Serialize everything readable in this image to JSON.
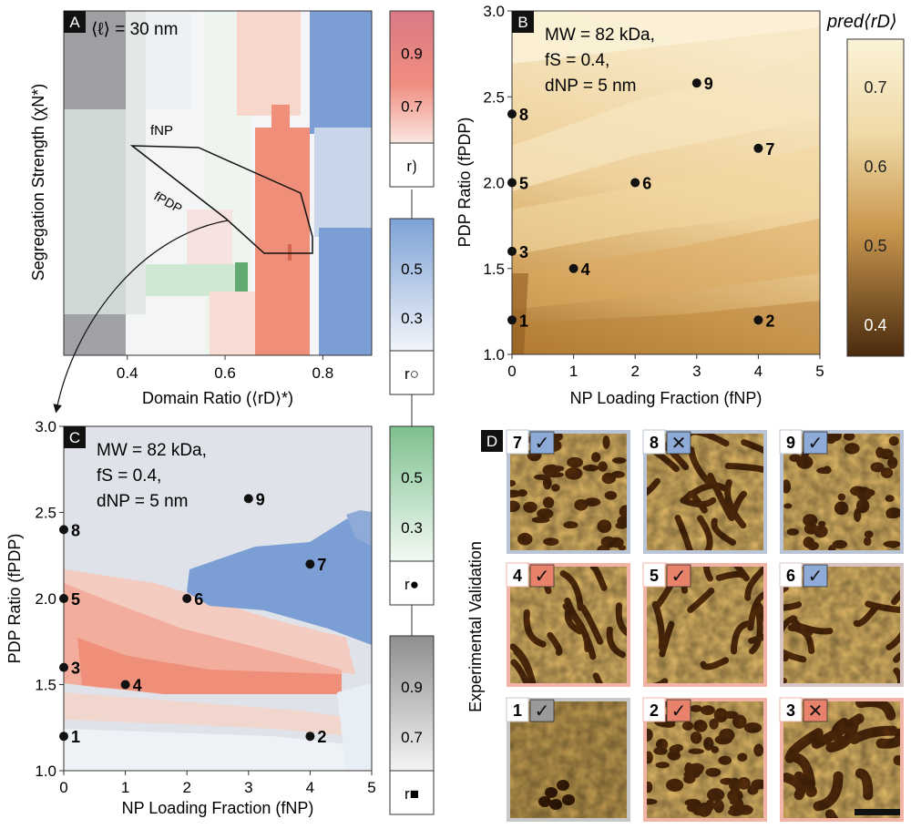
{
  "colors": {
    "red": "#e8826a",
    "red_light": "#f6c8bb",
    "blue": "#7b9fd4",
    "blue_light": "#c9d6ea",
    "green": "#8fca9c",
    "gray": "#9a9a9c",
    "bg_gray": "#dfe3e9",
    "pred_low": "#4a2a0e",
    "pred_high": "#fbf3d8"
  },
  "panel_a": {
    "letter": "A",
    "annotation": "⟨ℓ⟩ = 30 nm",
    "xlabel": "Domain Ratio (⟨rD⟩*)",
    "ylabel": "Segregation Strength (χN*)",
    "xticks": [
      "0.4",
      "0.6",
      "0.8"
    ],
    "xtick_values": [
      0.4,
      0.6,
      0.8
    ],
    "xlim": [
      0.27,
      0.9
    ],
    "label_fnp": "fNP",
    "label_fpdp": "fPDP"
  },
  "legends": [
    {
      "id": "red",
      "ticks": [
        "0.9",
        "0.7"
      ],
      "caption": "r⟯",
      "tick_pos": [
        0.32,
        0.72
      ]
    },
    {
      "id": "blue",
      "ticks": [
        "0.5",
        "0.3"
      ],
      "caption": "r○",
      "tick_pos": [
        0.38,
        0.75
      ]
    },
    {
      "id": "green",
      "ticks": [
        "0.5",
        "0.3"
      ],
      "caption": "r●",
      "tick_pos": [
        0.38,
        0.75
      ]
    },
    {
      "id": "gray",
      "ticks": [
        "0.9",
        "0.7"
      ],
      "caption": "r■",
      "tick_pos": [
        0.38,
        0.75
      ]
    }
  ],
  "chart_data": [
    {
      "panel": "B",
      "type": "heatmap",
      "annotation_lines": [
        "MW = 82 kDa,",
        "fS = 0.4,",
        "dNP = 5 nm"
      ],
      "xlabel": "NP Loading Fraction (fNP)",
      "ylabel": "PDP Ratio (fPDP)",
      "xlim": [
        0,
        5
      ],
      "ylim": [
        1.0,
        3.0
      ],
      "xticks": [
        "0",
        "1",
        "2",
        "3",
        "4",
        "5"
      ],
      "yticks": [
        "1.0",
        "1.5",
        "2.0",
        "2.5",
        "3.0"
      ],
      "colorbar": {
        "title": "pred⟨rD⟩",
        "ticks": [
          "0.7",
          "0.6",
          "0.5",
          "0.4"
        ],
        "tick_values": [
          0.7,
          0.6,
          0.5,
          0.4
        ],
        "range": [
          0.36,
          0.76
        ]
      },
      "points": [
        {
          "label": "1",
          "x": 0,
          "y": 1.2
        },
        {
          "label": "2",
          "x": 4,
          "y": 1.2
        },
        {
          "label": "3",
          "x": 0,
          "y": 1.6
        },
        {
          "label": "4",
          "x": 1,
          "y": 1.5
        },
        {
          "label": "5",
          "x": 0,
          "y": 2.0
        },
        {
          "label": "6",
          "x": 2,
          "y": 2.0
        },
        {
          "label": "7",
          "x": 4,
          "y": 2.2
        },
        {
          "label": "8",
          "x": 0,
          "y": 2.4
        },
        {
          "label": "9",
          "x": 3,
          "y": 2.58
        }
      ]
    },
    {
      "panel": "C",
      "type": "heatmap",
      "annotation_lines": [
        "MW = 82 kDa,",
        "fS = 0.4,",
        "dNP = 5 nm"
      ],
      "xlabel": "NP Loading Fraction (fNP)",
      "ylabel": "PDP Ratio (fPDP)",
      "xlim": [
        0,
        5
      ],
      "ylim": [
        1.0,
        3.0
      ],
      "xticks": [
        "0",
        "1",
        "2",
        "3",
        "4",
        "5"
      ],
      "yticks": [
        "1.0",
        "1.5",
        "2.0",
        "2.5",
        "3.0"
      ],
      "points": [
        {
          "label": "1",
          "x": 0,
          "y": 1.2
        },
        {
          "label": "2",
          "x": 4,
          "y": 1.2
        },
        {
          "label": "3",
          "x": 0,
          "y": 1.6
        },
        {
          "label": "4",
          "x": 1,
          "y": 1.5
        },
        {
          "label": "5",
          "x": 0,
          "y": 2.0
        },
        {
          "label": "6",
          "x": 2,
          "y": 2.0
        },
        {
          "label": "7",
          "x": 4,
          "y": 2.2
        },
        {
          "label": "8",
          "x": 0,
          "y": 2.4
        },
        {
          "label": "9",
          "x": 3,
          "y": 2.58
        }
      ]
    }
  ],
  "panel_d": {
    "letter": "D",
    "ylabel": "Experimental Validation",
    "tiles": [
      {
        "num": "7",
        "mark": "✓",
        "frame": "#b9c5d6",
        "box": "#8eaad6",
        "pattern": "dots"
      },
      {
        "num": "8",
        "mark": "✕",
        "frame": "#b9c5d6",
        "box": "#8eaad6",
        "pattern": "worms"
      },
      {
        "num": "9",
        "mark": "✓",
        "frame": "#b9c5d6",
        "box": "#8eaad6",
        "pattern": "dots"
      },
      {
        "num": "4",
        "mark": "✓",
        "frame": "#f2b4a6",
        "box": "#e8826a",
        "pattern": "stripes"
      },
      {
        "num": "5",
        "mark": "✓",
        "frame": "#f2b4a6",
        "box": "#e8826a",
        "pattern": "worms"
      },
      {
        "num": "6",
        "mark": "✓",
        "frame": "#d9c4c4",
        "box": "#8eaad6",
        "pattern": "mixed"
      },
      {
        "num": "1",
        "mark": "✓",
        "frame": "#c7c7c7",
        "box": "#9a9a9c",
        "pattern": "flat"
      },
      {
        "num": "2",
        "mark": "✓",
        "frame": "#f2b4a6",
        "box": "#e8826a",
        "pattern": "fine"
      },
      {
        "num": "3",
        "mark": "✕",
        "frame": "#f2b4a6",
        "box": "#e8826a",
        "pattern": "blobs"
      }
    ]
  }
}
